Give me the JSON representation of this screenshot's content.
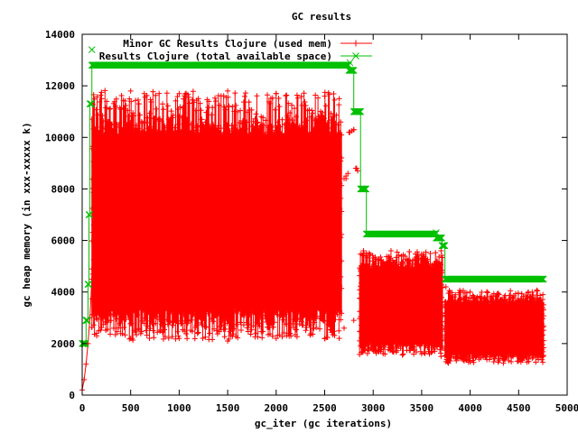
{
  "chart_data": {
    "type": "scatter",
    "title": "GC results",
    "xlabel": "gc_iter (gc iterations)",
    "ylabel": "gc heap memory (in xxx-xxxxx k)",
    "xlim": [
      0,
      5000
    ],
    "ylim": [
      0,
      14000
    ],
    "xticks": [
      "0",
      "500",
      "1000",
      "1500",
      "2000",
      "2500",
      "3000",
      "3500",
      "4000",
      "4500",
      "5000"
    ],
    "yticks": [
      "0",
      "2000",
      "4000",
      "6000",
      "8000",
      "10000",
      "12000",
      "14000"
    ],
    "grid": false,
    "legend_position": "top-left",
    "series": [
      {
        "name": "Minor GC Results Clojure (used mem)",
        "color": "#ff0000",
        "marker": "plus",
        "description_points": [
          [
            0,
            200
          ],
          [
            20,
            600
          ],
          [
            40,
            1200
          ],
          [
            60,
            2000
          ],
          [
            80,
            3000
          ],
          [
            100,
            4500
          ],
          [
            120,
            6000
          ],
          [
            150,
            2400
          ],
          [
            200,
            11500
          ],
          [
            500,
            11800
          ],
          [
            1000,
            11700
          ],
          [
            1500,
            11800
          ],
          [
            2000,
            11700
          ],
          [
            2500,
            11600
          ],
          [
            2650,
            11500
          ],
          [
            150,
            2300
          ],
          [
            500,
            2200
          ],
          [
            1000,
            2200
          ],
          [
            1500,
            2100
          ],
          [
            2000,
            2200
          ],
          [
            2500,
            2200
          ],
          [
            2650,
            2200
          ],
          [
            2700,
            2600
          ],
          [
            2720,
            8400
          ],
          [
            2750,
            10200
          ],
          [
            2800,
            10300
          ],
          [
            2830,
            8800
          ],
          [
            2900,
            5600
          ],
          [
            3000,
            5200
          ],
          [
            3300,
            5100
          ],
          [
            3500,
            5400
          ],
          [
            3700,
            5600
          ],
          [
            2900,
            1800
          ],
          [
            3200,
            1700
          ],
          [
            3500,
            1600
          ],
          [
            3700,
            1500
          ],
          [
            3750,
            4200
          ],
          [
            4000,
            4000
          ],
          [
            4300,
            3900
          ],
          [
            4600,
            4000
          ],
          [
            4750,
            3900
          ],
          [
            3750,
            1300
          ],
          [
            4000,
            1300
          ],
          [
            4300,
            1400
          ],
          [
            4600,
            1400
          ],
          [
            4750,
            1500
          ]
        ],
        "band_segments": [
          {
            "x_start": 100,
            "x_end": 2680,
            "y_low": 2200,
            "y_high": 11800
          },
          {
            "x_start": 2860,
            "x_end": 3720,
            "y_low": 1600,
            "y_high": 5600
          },
          {
            "x_start": 3740,
            "x_end": 4760,
            "y_low": 1300,
            "y_high": 4000
          }
        ]
      },
      {
        "name": "Results Clojure (total available space)",
        "color": "#00c000",
        "marker": "cross",
        "steps": [
          {
            "x_start": 0,
            "x_end": 40,
            "y": 2000
          },
          {
            "x_start": 40,
            "x_end": 60,
            "y": 2900
          },
          {
            "x_start": 60,
            "x_end": 70,
            "y": 4300
          },
          {
            "x_start": 70,
            "x_end": 80,
            "y": 7000
          },
          {
            "x_start": 80,
            "x_end": 100,
            "y": 11300
          },
          {
            "x_start": 100,
            "x_end": 2750,
            "y": 12800
          },
          {
            "x_start": 2750,
            "x_end": 2800,
            "y": 12600
          },
          {
            "x_start": 2800,
            "x_end": 2870,
            "y": 11000
          },
          {
            "x_start": 2870,
            "x_end": 2930,
            "y": 8000
          },
          {
            "x_start": 2930,
            "x_end": 3650,
            "y": 6250
          },
          {
            "x_start": 3650,
            "x_end": 3710,
            "y": 6100
          },
          {
            "x_start": 3710,
            "x_end": 3740,
            "y": 5800
          },
          {
            "x_start": 3740,
            "x_end": 4760,
            "y": 4500
          }
        ],
        "extra_points": [
          [
            100,
            13400
          ],
          [
            2760,
            12900
          ],
          [
            3650,
            6300
          ]
        ]
      }
    ]
  }
}
